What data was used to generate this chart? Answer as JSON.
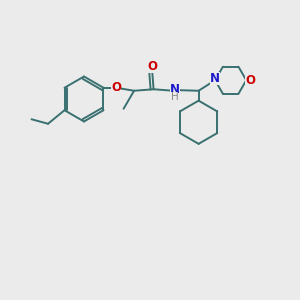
{
  "bg_color": "#ebebeb",
  "bond_color": "#3a7070",
  "N_color": "#1a1acc",
  "O_color": "#cc0000",
  "lw": 1.4,
  "fig_w": 3.0,
  "fig_h": 3.0,
  "dpi": 100,
  "xlim": [
    0,
    10
  ],
  "ylim": [
    0,
    10
  ]
}
